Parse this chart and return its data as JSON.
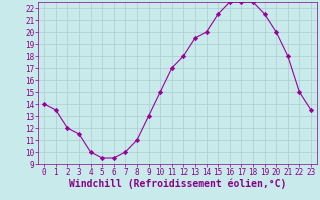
{
  "x": [
    0,
    1,
    2,
    3,
    4,
    5,
    6,
    7,
    8,
    9,
    10,
    11,
    12,
    13,
    14,
    15,
    16,
    17,
    18,
    19,
    20,
    21,
    22,
    23
  ],
  "y": [
    14,
    13.5,
    12,
    11.5,
    10,
    9.5,
    9.5,
    10,
    11,
    13,
    15,
    17,
    18,
    19.5,
    20,
    21.5,
    22.5,
    22.5,
    22.5,
    21.5,
    20,
    18,
    15,
    13.5
  ],
  "line_color": "#990099",
  "marker": "D",
  "marker_size": 2.2,
  "bg_color": "#c8eaea",
  "grid_color": "#aacccc",
  "xlabel": "Windchill (Refroidissement éolien,°C)",
  "xlabel_color": "#880088",
  "ylim": [
    9,
    22.5
  ],
  "xlim": [
    -0.5,
    23.5
  ],
  "yticks": [
    9,
    10,
    11,
    12,
    13,
    14,
    15,
    16,
    17,
    18,
    19,
    20,
    21,
    22
  ],
  "xticks": [
    0,
    1,
    2,
    3,
    4,
    5,
    6,
    7,
    8,
    9,
    10,
    11,
    12,
    13,
    14,
    15,
    16,
    17,
    18,
    19,
    20,
    21,
    22,
    23
  ],
  "tick_color": "#880088",
  "tick_fontsize": 5.5,
  "xlabel_fontsize": 7.0,
  "linewidth": 0.8
}
